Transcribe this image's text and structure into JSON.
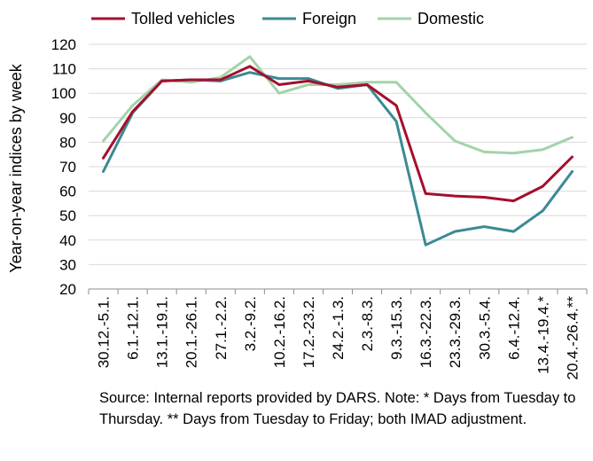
{
  "chart_data": {
    "type": "line",
    "categories": [
      "30.12.-5.1.",
      "6.1.-12.1.",
      "13.1.-19.1.",
      "20.1.-26.1.",
      "27.1.-2.2.",
      "3.2.-9.2.",
      "10.2.-16.2.",
      "17.2.-23.2.",
      "24.2.-1.3.",
      "2.3.-8.3.",
      "9.3.-15.3.",
      "16.3.-22.3.",
      "23.3.-29.3.",
      "30.3.-5.4.",
      "6.4.-12.4.",
      "13.4.-19.4.*",
      "20.4.-26.4.**"
    ],
    "series": [
      {
        "name": "Tolled vehicles",
        "color": "#a50f2d",
        "values": [
          73.5,
          92.5,
          105,
          105.5,
          105.5,
          111,
          103.5,
          105,
          102.5,
          103.5,
          95,
          59,
          58,
          57.5,
          56,
          62,
          74
        ]
      },
      {
        "name": "Foreign",
        "color": "#3b8a94",
        "values": [
          68,
          92,
          105,
          105.5,
          105,
          108.5,
          106,
          106,
          102,
          103.5,
          88.5,
          38,
          43.5,
          45.5,
          43.5,
          52,
          68
        ]
      },
      {
        "name": "Domestic",
        "color": "#a3d3a9",
        "values": [
          80.5,
          95,
          105.5,
          104.5,
          106.5,
          115,
          100,
          103.5,
          103.5,
          104.5,
          104.5,
          92,
          80.5,
          76,
          75.5,
          77,
          82
        ]
      }
    ],
    "ylabel": "Year-on-year indices by week",
    "ylim": [
      20,
      120
    ],
    "yticks": [
      "20",
      "30",
      "40",
      "50",
      "60",
      "70",
      "80",
      "90",
      "100",
      "110",
      "120"
    ],
    "grid": true,
    "legend_position": "top"
  },
  "source_note": "Source: Internal reports provided by DARS. Note: * Days from Tuesday to Thursday. ** Days from Tuesday to Friday; both IMAD adjustment."
}
